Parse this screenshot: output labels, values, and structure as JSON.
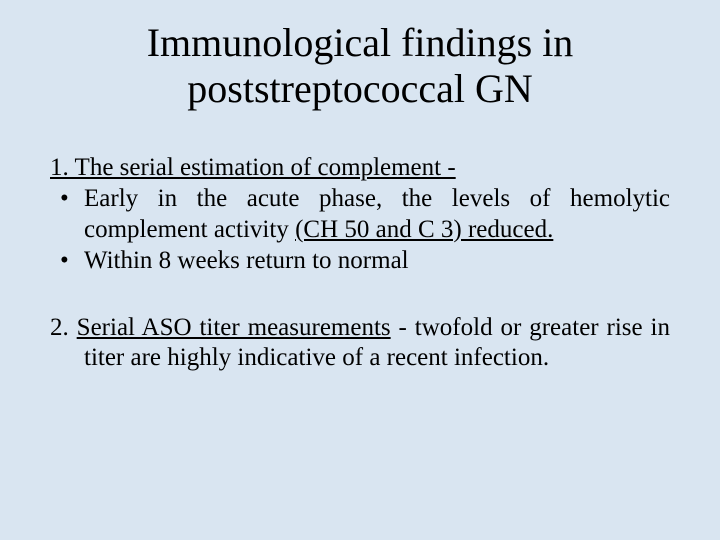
{
  "slide": {
    "background_color": "#d9e5f1",
    "text_color": "#000000",
    "title_fontsize": 40,
    "body_fontsize": 25,
    "font_family": "Times New Roman"
  },
  "title": {
    "line1": "Immunological findings in",
    "line2": "poststreptococcal GN"
  },
  "section1": {
    "heading": "1. The serial estimation of complement  -",
    "bullet1_prefix": "Early in the acute phase, the levels of hemolytic complement activity ",
    "bullet1_underlined": "(CH 50 and C 3) reduced.",
    "bullet2": "Within 8 weeks return to normal"
  },
  "section2": {
    "label": "2. ",
    "lead_underlined": "Serial ASO titer measurements",
    "rest": " - twofold or greater rise in titer are highly indicative of a recent infection."
  }
}
